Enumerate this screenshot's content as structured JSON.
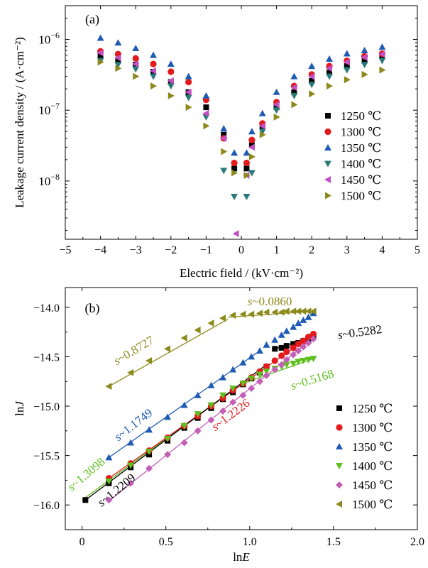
{
  "chart_data": [
    {
      "panel_label": "(a)",
      "type": "scatter",
      "xlabel": "Electric field / (kV·cm⁻²)",
      "ylabel": "Leakage current density / (A·cm⁻²)",
      "xlim": [
        -5,
        5
      ],
      "ylim": [
        1.5e-09,
        3e-06
      ],
      "yscale": "log",
      "x_ticks": [
        -5,
        -4,
        -3,
        -2,
        -1,
        0,
        1,
        2,
        3,
        4,
        5
      ],
      "x_tick_labels": [
        "−5",
        "−4",
        "−3",
        "−2",
        "−1",
        "0",
        "1",
        "2",
        "3",
        "4",
        "5"
      ],
      "y_ticks": [
        1e-08,
        1e-07,
        1e-06
      ],
      "y_tick_labels": [
        {
          "base": "10",
          "exp": "−8"
        },
        {
          "base": "10",
          "exp": "−7"
        },
        {
          "base": "10",
          "exp": "−6"
        }
      ],
      "legend_position": "right",
      "series": [
        {
          "name": "1250 ℃",
          "marker": "square",
          "color": "#000000",
          "x": [
            -4.0,
            -3.5,
            -3.0,
            -2.5,
            -2.0,
            -1.5,
            -1.0,
            -0.5,
            -0.2,
            0.15,
            0.3,
            0.6,
            1.0,
            1.5,
            2.0,
            2.5,
            3.0,
            3.5,
            4.0
          ],
          "y": [
            6e-07,
            5e-07,
            4.4e-07,
            3.5e-07,
            2.5e-07,
            1.8e-07,
            1.1e-07,
            4.5e-08,
            1.5e-08,
            1.5e-08,
            3.2e-08,
            5.8e-08,
            1.1e-07,
            1.8e-07,
            2.6e-07,
            3.4e-07,
            4.2e-07,
            5e-07,
            5.8e-07
          ]
        },
        {
          "name": "1300 ℃",
          "marker": "circle",
          "color": "#e41a1c",
          "x": [
            -4.0,
            -3.5,
            -3.0,
            -2.5,
            -2.0,
            -1.5,
            -1.0,
            -0.5,
            -0.2,
            0.15,
            0.3,
            0.6,
            1.0,
            1.5,
            2.0,
            2.5,
            3.0,
            3.5,
            4.0
          ],
          "y": [
            6.8e-07,
            6.2e-07,
            5.4e-07,
            4.5e-07,
            3.5e-07,
            2.5e-07,
            1.4e-07,
            4e-08,
            1.8e-08,
            1.8e-08,
            3.8e-08,
            6.5e-08,
            1.3e-07,
            2.2e-07,
            3.2e-07,
            4.2e-07,
            5e-07,
            5.8e-07,
            6.3e-07
          ]
        },
        {
          "name": "1350 ℃",
          "marker": "triangle-up",
          "color": "#1f5bb5",
          "x": [
            -4.0,
            -3.5,
            -3.0,
            -2.5,
            -2.0,
            -1.5,
            -1.0,
            -0.5,
            -0.2,
            0.15,
            0.3,
            0.6,
            1.0,
            1.5,
            2.0,
            2.5,
            3.0,
            3.5,
            4.0
          ],
          "y": [
            1.05e-06,
            9e-07,
            7.5e-07,
            6e-07,
            4.5e-07,
            3e-07,
            1.6e-07,
            5.5e-08,
            2.5e-08,
            2.5e-08,
            5e-08,
            9e-08,
            1.8e-07,
            3e-07,
            4.2e-07,
            5.3e-07,
            6.3e-07,
            7e-07,
            7.8e-07
          ]
        },
        {
          "name": "1400 ℃",
          "marker": "triangle-down",
          "color": "#2a7a7a",
          "x": [
            -4.0,
            -3.5,
            -3.0,
            -2.5,
            -2.0,
            -1.5,
            -1.0,
            -0.5,
            -0.2,
            0.15,
            0.3,
            0.6,
            1.0,
            1.5,
            2.0,
            2.5,
            3.0,
            3.5,
            4.0
          ],
          "y": [
            5e-07,
            4.4e-07,
            3.8e-07,
            3e-07,
            2.2e-07,
            1.5e-07,
            8e-08,
            1.4e-08,
            6e-09,
            6e-09,
            1.3e-08,
            5e-08,
            1e-07,
            1.6e-07,
            2.3e-07,
            3e-07,
            3.7e-07,
            4.4e-07,
            5e-07
          ]
        },
        {
          "name": "1450 ℃",
          "marker": "triangle-left",
          "color": "#c44fc4",
          "x": [
            -4.0,
            -3.5,
            -3.0,
            -2.5,
            -2.0,
            -1.5,
            -1.0,
            -0.5,
            -0.15,
            0.15,
            0.3,
            0.6,
            1.0,
            1.5,
            2.0,
            2.5,
            3.0,
            3.5,
            4.0
          ],
          "y": [
            6.5e-07,
            5.5e-07,
            4.5e-07,
            3.6e-07,
            2.6e-07,
            1.8e-07,
            9e-08,
            4e-08,
            1.8e-09,
            1.2e-08,
            3e-08,
            6e-08,
            1.2e-07,
            2.1e-07,
            3e-07,
            3.9e-07,
            4.8e-07,
            5.6e-07,
            6.2e-07
          ]
        },
        {
          "name": "1500 ℃",
          "marker": "triangle-right",
          "color": "#8c8a1c",
          "x": [
            -4.0,
            -3.5,
            -3.0,
            -2.5,
            -2.0,
            -1.5,
            -1.0,
            -0.5,
            -0.2,
            0.15,
            0.3,
            0.6,
            1.0,
            1.5,
            2.0,
            2.5,
            3.0,
            3.5,
            4.0
          ],
          "y": [
            4.8e-07,
            3.9e-07,
            3e-07,
            2.2e-07,
            1.6e-07,
            1.1e-07,
            6e-08,
            2.6e-08,
            1.3e-08,
            1.2e-08,
            2.2e-08,
            4.5e-08,
            8e-08,
            1.2e-07,
            1.7e-07,
            2.2e-07,
            2.7e-07,
            3.2e-07,
            3.7e-07
          ]
        }
      ]
    },
    {
      "panel_label": "(b)",
      "type": "scatter",
      "xlabel_main": "ln",
      "xlabel_var": "E",
      "ylabel_main": "ln",
      "ylabel_var": "J",
      "xlim": [
        -0.1,
        2.0
      ],
      "ylim": [
        -16.25,
        -13.8
      ],
      "x_ticks": [
        0,
        0.5,
        1.0,
        1.5,
        2.0
      ],
      "x_tick_labels": [
        "0",
        "0.5",
        "1.0",
        "1.5",
        "2.0"
      ],
      "y_ticks": [
        -16.0,
        -15.5,
        -15.0,
        -14.5,
        -14.0
      ],
      "y_tick_labels": [
        "−16.0",
        "−15.5",
        "−15.0",
        "−14.5",
        "−14.0"
      ],
      "legend_position": "bottom-right",
      "series": [
        {
          "name": "1250 ℃",
          "marker": "square",
          "color": "#000000",
          "x": [
            0.02,
            0.16,
            0.29,
            0.4,
            0.51,
            0.61,
            0.69,
            0.77,
            0.84,
            0.9,
            0.96,
            1.01,
            1.06,
            1.1,
            1.15,
            1.19,
            1.22,
            1.26,
            1.29,
            1.32,
            1.35,
            1.38
          ],
          "y": [
            -15.95,
            -15.78,
            -15.62,
            -15.49,
            -15.35,
            -15.22,
            -15.12,
            -15.02,
            -14.93,
            -14.86,
            -14.78,
            -14.72,
            -14.66,
            -14.6,
            -14.42,
            -14.41,
            -14.39,
            -14.37,
            -14.36,
            -14.34,
            -14.32,
            -14.3
          ]
        },
        {
          "name": "1300 ℃",
          "marker": "circle",
          "color": "#e41a1c",
          "x": [
            0.16,
            0.29,
            0.4,
            0.51,
            0.61,
            0.69,
            0.77,
            0.84,
            0.9,
            0.96,
            1.01,
            1.06,
            1.1,
            1.15,
            1.19,
            1.22,
            1.26,
            1.29,
            1.32,
            1.35,
            1.38
          ],
          "y": [
            -15.73,
            -15.58,
            -15.45,
            -15.32,
            -15.2,
            -15.1,
            -15.0,
            -14.92,
            -14.84,
            -14.77,
            -14.71,
            -14.65,
            -14.6,
            -14.54,
            -14.49,
            -14.45,
            -14.41,
            -14.37,
            -14.34,
            -14.3,
            -14.27
          ]
        },
        {
          "name": "1350 ℃",
          "marker": "triangle-up",
          "color": "#1f5bb5",
          "x": [
            0.16,
            0.29,
            0.4,
            0.51,
            0.61,
            0.69,
            0.77,
            0.84,
            0.9,
            0.96,
            1.01,
            1.06,
            1.1,
            1.15,
            1.19,
            1.22,
            1.26,
            1.29,
            1.32,
            1.35,
            1.38
          ],
          "y": [
            -15.52,
            -15.37,
            -15.24,
            -15.11,
            -14.99,
            -14.89,
            -14.79,
            -14.71,
            -14.63,
            -14.56,
            -14.5,
            -14.44,
            -14.38,
            -14.33,
            -14.28,
            -14.24,
            -14.2,
            -14.16,
            -14.13,
            -14.1,
            -14.06
          ]
        },
        {
          "name": "1400 ℃",
          "marker": "triangle-down",
          "color": "#5fbf1f",
          "x": [
            0.16,
            0.29,
            0.4,
            0.51,
            0.61,
            0.69,
            0.77,
            0.84,
            0.9,
            0.96,
            1.01,
            1.06,
            1.1,
            1.15,
            1.19,
            1.22,
            1.26,
            1.29,
            1.32,
            1.35,
            1.38
          ],
          "y": [
            -15.76,
            -15.6,
            -15.46,
            -15.33,
            -15.2,
            -15.08,
            -14.99,
            -14.89,
            -14.82,
            -14.77,
            -14.72,
            -14.68,
            -14.65,
            -14.62,
            -14.6,
            -14.58,
            -14.57,
            -14.55,
            -14.54,
            -14.53,
            -14.52
          ]
        },
        {
          "name": "1450 ℃",
          "marker": "diamond",
          "color": "#c45fb8",
          "x": [
            0.16,
            0.29,
            0.4,
            0.51,
            0.61,
            0.69,
            0.77,
            0.84,
            0.9,
            0.96,
            1.01,
            1.06,
            1.1,
            1.15,
            1.19,
            1.22,
            1.26,
            1.29,
            1.32,
            1.35,
            1.38
          ],
          "y": [
            -15.95,
            -15.78,
            -15.63,
            -15.49,
            -15.37,
            -15.25,
            -15.14,
            -15.05,
            -14.96,
            -14.89,
            -14.82,
            -14.75,
            -14.69,
            -14.63,
            -14.58,
            -14.53,
            -14.48,
            -14.44,
            -14.4,
            -14.36,
            -14.32
          ]
        },
        {
          "name": "1500 ℃",
          "marker": "triangle-left",
          "color": "#8c8a1c",
          "x": [
            0.16,
            0.29,
            0.4,
            0.51,
            0.61,
            0.69,
            0.77,
            0.84,
            0.9,
            0.96,
            1.01,
            1.06,
            1.1,
            1.15,
            1.19,
            1.22,
            1.26,
            1.29,
            1.32,
            1.35,
            1.38
          ],
          "y": [
            -14.8,
            -14.66,
            -14.54,
            -14.42,
            -14.31,
            -14.23,
            -14.16,
            -14.11,
            -14.08,
            -14.07,
            -14.07,
            -14.06,
            -14.05,
            -14.05,
            -14.05,
            -14.04,
            -14.04,
            -14.04,
            -14.04,
            -14.04,
            -14.04
          ]
        }
      ],
      "fits": [
        {
          "color": "#8c8a1c",
          "points": [
            [
              0.16,
              -14.8
            ],
            [
              0.87,
              -14.12
            ]
          ],
          "label": "0.8727",
          "label_x": 0.32,
          "label_y": -14.47,
          "rotate": -31
        },
        {
          "color": "#8c8a1c",
          "points": [
            [
              0.87,
              -14.1
            ],
            [
              1.38,
              -14.04
            ]
          ],
          "label": "0.0860",
          "label_x": 1.12,
          "label_y": -13.98,
          "rotate": 0
        },
        {
          "color": "#1f5bb5",
          "points": [
            [
              0.16,
              -15.52
            ],
            [
              1.06,
              -14.44
            ]
          ],
          "label": "1.1749",
          "label_x": 0.32,
          "label_y": -15.22,
          "rotate": -38
        },
        {
          "color": "#5fbf1f",
          "points": [
            [
              0.0,
              -15.95
            ],
            [
              0.92,
              -14.81
            ]
          ],
          "label": "1.3098",
          "label_x": 0.04,
          "label_y": -15.72,
          "rotate": -40
        },
        {
          "color": "#5fbf1f",
          "points": [
            [
              0.96,
              -14.77
            ],
            [
              1.38,
              -14.52
            ]
          ],
          "label": "0.5168",
          "label_x": 1.38,
          "label_y": -14.77,
          "rotate": -17
        },
        {
          "color": "#e41a1c",
          "points": [
            [
              0.16,
              -15.73
            ],
            [
              1.38,
              -14.27
            ]
          ],
          "label": "1.2226",
          "label_x": 0.9,
          "label_y": -15.12,
          "rotate": -37
        },
        {
          "color": "#c45fb8",
          "points": [
            [
              0.16,
              -15.96
            ],
            [
              1.38,
              -14.31
            ]
          ],
          "label": "",
          "label_x": 0,
          "label_y": 0,
          "rotate": 0
        },
        {
          "color": "#000000",
          "points": [
            [
              0.02,
              -15.95
            ],
            [
              1.1,
              -14.58
            ]
          ],
          "label": "1.2209",
          "label_x": 0.22,
          "label_y": -15.88,
          "rotate": -39
        },
        {
          "color": "#000000",
          "points": [
            [
              1.15,
              -14.42
            ],
            [
              1.38,
              -14.3
            ]
          ],
          "label": "0.5282",
          "label_x": 1.66,
          "label_y": -14.29,
          "rotate": -8
        }
      ],
      "fit_label_prefix": "s~"
    }
  ]
}
